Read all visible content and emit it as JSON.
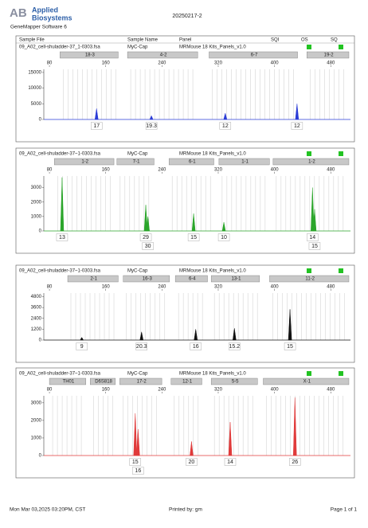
{
  "header": {
    "logo": "AB",
    "logo_line1": "Applied",
    "logo_line2": "Biosystems",
    "software": "GeneMapper Software 6",
    "run": "20250217-2"
  },
  "columns": [
    "Sample File",
    "Sample Name",
    "Panel",
    "SQI",
    "OS",
    "SQ"
  ],
  "chart_data": [
    {
      "type": "peaks",
      "sample_file": "09_A02_cell-shuladder-37_1-0303.fsa",
      "sample_name": "MyC-Cap",
      "panel": "MRMouse 18 Kits_Panels_v1.0",
      "color": "#2a3bd6",
      "markers": [
        {
          "name": "18-3",
          "range": [
            95,
            180
          ]
        },
        {
          "name": "4-2",
          "range": [
            191,
            293
          ]
        },
        {
          "name": "6-7",
          "range": [
            307,
            435
          ]
        },
        {
          "name": "19-2",
          "range": [
            446,
            508
          ]
        }
      ],
      "xlim": [
        72,
        508
      ],
      "xticks": [
        80,
        160,
        240,
        320,
        400,
        480
      ],
      "ylim": [
        0,
        16000
      ],
      "yticks": [
        0,
        5000,
        10000,
        15000
      ],
      "peaks": [
        {
          "x": 147,
          "height": 3500,
          "label": "17"
        },
        {
          "x": 225,
          "height": 1200,
          "label": "19.3"
        },
        {
          "x": 330,
          "height": 2000,
          "label": "12"
        },
        {
          "x": 432,
          "height": 5000,
          "label": "12"
        }
      ]
    },
    {
      "type": "peaks",
      "sample_file": "09_A02_cell-shuladder-37~1-0303.fsa",
      "sample_name": "MyC-Cap",
      "panel": "MRMouse 18 Kits_Panels_v1.0",
      "color": "#2aa52a",
      "markers": [
        {
          "name": "1-2",
          "range": [
            87,
            174
          ]
        },
        {
          "name": "7-1",
          "range": [
            176,
            231
          ]
        },
        {
          "name": "6-1",
          "range": [
            250,
            316
          ]
        },
        {
          "name": "1-1",
          "range": [
            321,
            395
          ]
        },
        {
          "name": "1-2",
          "range": [
            398,
            508
          ]
        }
      ],
      "xlim": [
        72,
        508
      ],
      "xticks": [
        80,
        160,
        240,
        320,
        400,
        480
      ],
      "ylim": [
        0,
        3800
      ],
      "yticks": [
        0,
        1000,
        2000,
        3000
      ],
      "peaks": [
        {
          "x": 98,
          "height": 3700,
          "label": "13"
        },
        {
          "x": 217,
          "height": 1800,
          "label": "29"
        },
        {
          "x": 220,
          "height": 1000,
          "label": "30"
        },
        {
          "x": 285,
          "height": 1200,
          "label": "15"
        },
        {
          "x": 328,
          "height": 600,
          "label": "10"
        },
        {
          "x": 454,
          "height": 3000,
          "label": "14"
        },
        {
          "x": 457,
          "height": 1500,
          "label": "15"
        }
      ]
    },
    {
      "type": "peaks",
      "sample_file": "09_A02_cell-shuladder-37~1-0303.fsa",
      "sample_name": "MyC-Cap",
      "panel": "MRMouse 18 Kits_Panels_v1.0",
      "color": "#111111",
      "markers": [
        {
          "name": "2-1",
          "range": [
            106,
            180
          ]
        },
        {
          "name": "16-3",
          "range": [
            185,
            253
          ]
        },
        {
          "name": "6-4",
          "range": [
            259,
            307
          ]
        },
        {
          "name": "13-1",
          "range": [
            310,
            381
          ]
        },
        {
          "name": "11-2",
          "range": [
            393,
            508
          ]
        }
      ],
      "xlim": [
        72,
        508
      ],
      "xticks": [
        80,
        160,
        240,
        320,
        400,
        480
      ],
      "ylim": [
        0,
        5200
      ],
      "yticks": [
        0,
        1200,
        2400,
        3600,
        4800
      ],
      "peaks": [
        {
          "x": 126,
          "height": 300,
          "label": "9"
        },
        {
          "x": 211,
          "height": 900,
          "label": "20.3"
        },
        {
          "x": 288,
          "height": 1200,
          "label": "16"
        },
        {
          "x": 343,
          "height": 1300,
          "label": "15.2"
        },
        {
          "x": 422,
          "height": 3400,
          "label": "15"
        }
      ]
    },
    {
      "type": "peaks",
      "sample_file": "09_A02_cell-shuladder-37~1-0303.fsa",
      "sample_name": "MyC-Cap",
      "panel": "MRMouse 18 Kits_Panels_v1.0",
      "color": "#e03a3a",
      "markers": [
        {
          "name": "TH01",
          "range": [
            80,
            134
          ]
        },
        {
          "name": "D6S818",
          "range": [
            138,
            176
          ]
        },
        {
          "name": "17-2",
          "range": [
            180,
            242
          ]
        },
        {
          "name": "12-1",
          "range": [
            253,
            299
          ]
        },
        {
          "name": "5-5",
          "range": [
            310,
            378
          ]
        },
        {
          "name": "X-1",
          "range": [
            384,
            508
          ]
        }
      ],
      "xlim": [
        72,
        508
      ],
      "xticks": [
        80,
        160,
        240,
        320,
        400,
        480
      ],
      "ylim": [
        0,
        3400
      ],
      "yticks": [
        0,
        1000,
        2000,
        3000
      ],
      "peaks": [
        {
          "x": 202,
          "height": 2400,
          "label": "15"
        },
        {
          "x": 206,
          "height": 1500,
          "label": "16"
        },
        {
          "x": 282,
          "height": 800,
          "label": "20"
        },
        {
          "x": 337,
          "height": 1900,
          "label": "14"
        },
        {
          "x": 429,
          "height": 3300,
          "label": "26"
        }
      ]
    }
  ],
  "footer": {
    "date": "Mon Mar 03,2025 03:20PM, CST",
    "printed_by": "Printed by: gm",
    "page": "Page 1 of 1"
  }
}
